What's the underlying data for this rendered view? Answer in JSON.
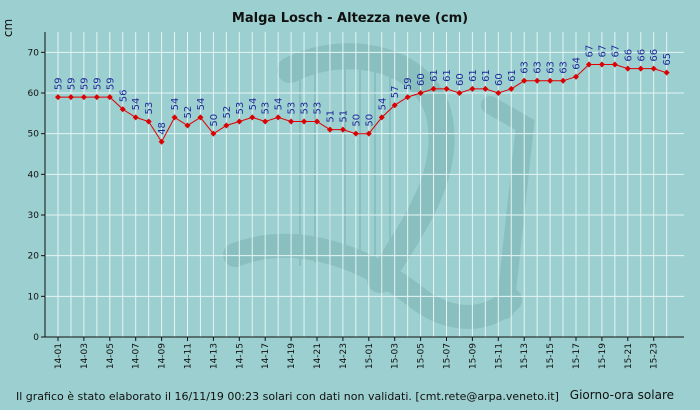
{
  "chart_data": {
    "type": "line",
    "title": "Malga Losch - Altezza neve (cm)",
    "ylabel": "cm",
    "xlabel": "Giorno-ora solare",
    "ylim": [
      0,
      75
    ],
    "yticks": [
      0,
      10,
      20,
      30,
      40,
      50,
      60,
      70
    ],
    "grid": true,
    "x": [
      "14-01",
      "14-02",
      "14-03",
      "14-04",
      "14-05",
      "14-06",
      "14-07",
      "14-08",
      "14-09",
      "14-10",
      "14-11",
      "14-12",
      "14-13",
      "14-14",
      "14-15",
      "14-16",
      "14-17",
      "14-18",
      "14-19",
      "14-20",
      "14-21",
      "14-22",
      "14-23",
      "14-24",
      "15-01",
      "15-02",
      "15-03",
      "15-04",
      "15-05",
      "15-06",
      "15-07",
      "15-08",
      "15-09",
      "15-10",
      "15-11",
      "15-12",
      "15-13",
      "15-14",
      "15-15",
      "15-16",
      "15-17",
      "15-18",
      "15-19",
      "15-20",
      "15-21",
      "15-22",
      "15-23",
      "15-24"
    ],
    "x_tick_labels": [
      "14-01",
      "14-03",
      "14-05",
      "14-07",
      "14-09",
      "14-11",
      "14-13",
      "14-15",
      "14-17",
      "14-19",
      "14-21",
      "14-23",
      "15-01",
      "15-03",
      "15-05",
      "15-07",
      "15-09",
      "15-11",
      "15-13",
      "15-15",
      "15-17",
      "15-19",
      "15-21",
      "15-23"
    ],
    "series": [
      {
        "values": [
          59,
          59,
          59,
          59,
          59,
          56,
          54,
          53,
          48,
          54,
          52,
          54,
          50,
          52,
          53,
          54,
          53,
          54,
          53,
          53,
          53,
          51,
          51,
          50,
          50,
          54,
          57,
          59,
          60,
          61,
          61,
          60,
          61,
          61,
          60,
          61,
          63,
          63,
          63,
          63,
          64,
          67,
          67,
          67,
          66,
          66,
          66,
          65
        ],
        "color": "#dd0000"
      }
    ]
  },
  "footer": {
    "note": "Il grafico è stato elaborato il 16/11/19 00:23 solari con dati non validati. [cmt.rete@arpa.veneto.it]"
  },
  "colors": {
    "background": "#9ccfcf",
    "grid": "#e6f4f4",
    "line": "#dd0000",
    "data_label": "#1c2a9a"
  }
}
